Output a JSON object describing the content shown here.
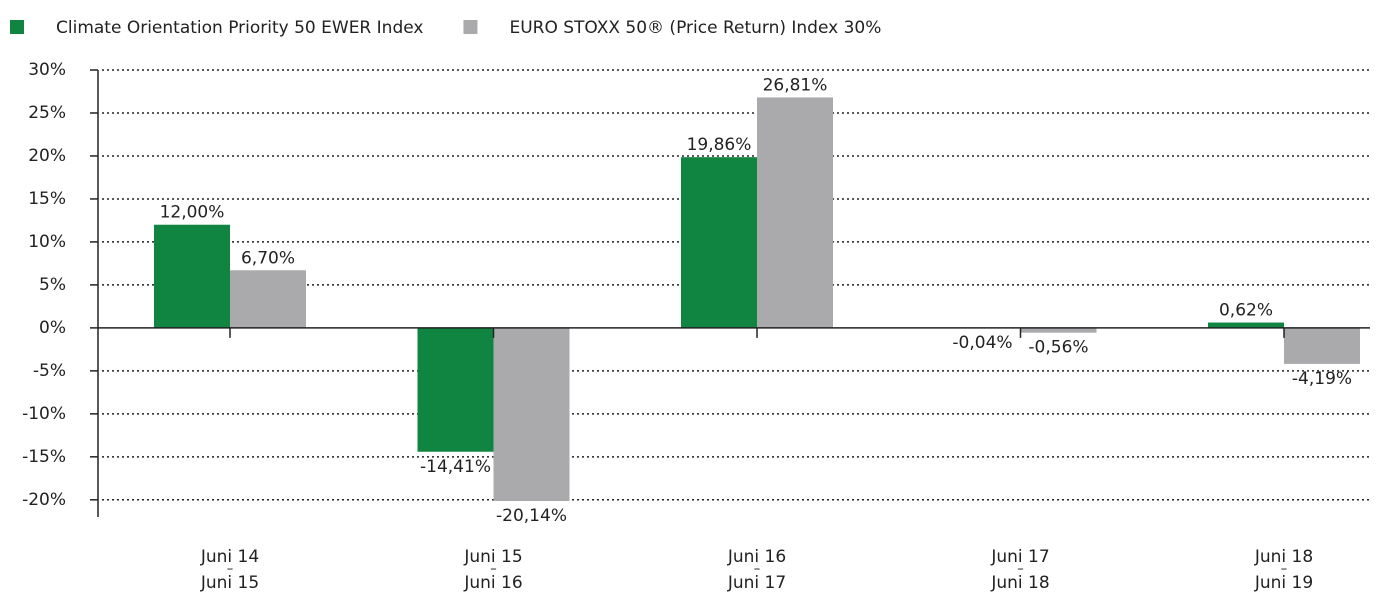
{
  "chart_data": {
    "type": "bar",
    "categories": [
      [
        "Juni 14",
        "–",
        "Juni 15"
      ],
      [
        "Juni 15",
        "–",
        "Juni 16"
      ],
      [
        "Juni 16",
        "–",
        "Juni 17"
      ],
      [
        "Juni 17",
        "–",
        "Juni 18"
      ],
      [
        "Juni 18",
        "–",
        "Juni 19"
      ]
    ],
    "series": [
      {
        "name": "Climate Orientation Priority 50 EWER Index",
        "color": "#108542",
        "values": [
          12.0,
          -14.41,
          19.86,
          -0.04,
          0.62
        ],
        "value_labels": [
          "12,00%",
          "-14,41%",
          "19,86%",
          "-0,04%",
          "0,62%"
        ]
      },
      {
        "name": "EURO STOXX 50® (Price Return) Index 30%",
        "color": "#aaa9ab",
        "values": [
          6.7,
          -20.14,
          26.81,
          -0.56,
          -4.19
        ],
        "value_labels": [
          "6,70%",
          "-20,14%",
          "26,81%",
          "-0,56%",
          "-4,19%"
        ]
      }
    ],
    "ylim": [
      -22,
      30
    ],
    "yticks": [
      {
        "value": -20,
        "label": "-20%"
      },
      {
        "value": -15,
        "label": "-15%"
      },
      {
        "value": -10,
        "label": "-10%"
      },
      {
        "value": -5,
        "label": "-5%"
      },
      {
        "value": 0,
        "label": "0%"
      },
      {
        "value": 5,
        "label": "5%"
      },
      {
        "value": 10,
        "label": "10%"
      },
      {
        "value": 15,
        "label": "15%"
      },
      {
        "value": 20,
        "label": "20%"
      },
      {
        "value": 25,
        "label": "25%"
      },
      {
        "value": 30,
        "label": "30%"
      }
    ],
    "grid": true,
    "legend": "top-left"
  }
}
